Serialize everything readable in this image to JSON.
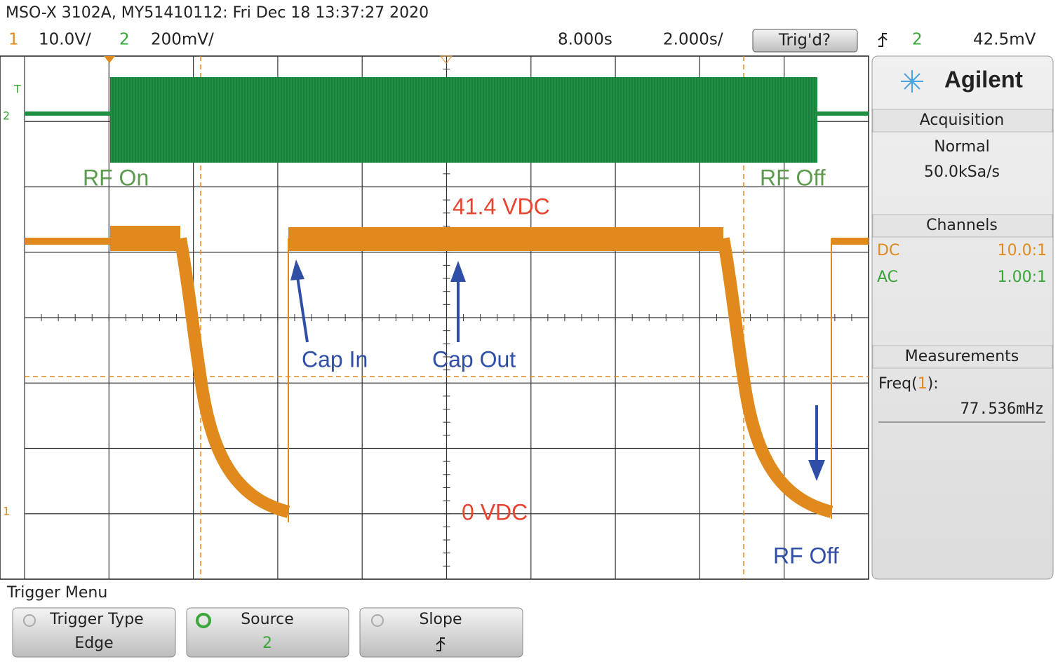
{
  "header": {
    "title": "MSO-X 3102A, MY51410112: Fri Dec 18 13:37:27 2020"
  },
  "status_bar": {
    "ch1_label": "1",
    "ch1_scale": "10.0V/",
    "ch2_label": "2",
    "ch2_scale": "200mV/",
    "time_delay": "8.000s",
    "time_scale": "2.000s/",
    "trigger_button": "Trig'd?",
    "trigger_source": "2",
    "trigger_level": "42.5mV"
  },
  "display": {
    "markers": [
      "T",
      "2",
      "1"
    ],
    "annotations": {
      "rf_on": "RF On",
      "rf_off_top": "RF Off",
      "level_high": "41.4 VDC",
      "cap_in": "Cap In",
      "cap_out": "Cap Out",
      "level_zero": "0 VDC",
      "rf_off_bottom": "RF Off"
    }
  },
  "side_panel": {
    "brand": "Agilent",
    "acquisition": {
      "title": "Acquisition",
      "mode": "Normal",
      "rate": "50.0kSa/s"
    },
    "channels": {
      "title": "Channels",
      "rows": [
        [
          "DC",
          "10.0:1"
        ],
        [
          "AC",
          "1.00:1"
        ]
      ]
    },
    "measurements": {
      "title": "Measurements",
      "name_prefix": "Freq(",
      "channel": "1",
      "name_suffix": "):",
      "value": "77.536mHz"
    }
  },
  "soft_keys": {
    "menu_title": "Trigger Menu",
    "keys": [
      {
        "label": "Trigger Type",
        "value": "Edge"
      },
      {
        "label": "Source",
        "value": "2"
      },
      {
        "label": "Slope"
      }
    ]
  }
}
